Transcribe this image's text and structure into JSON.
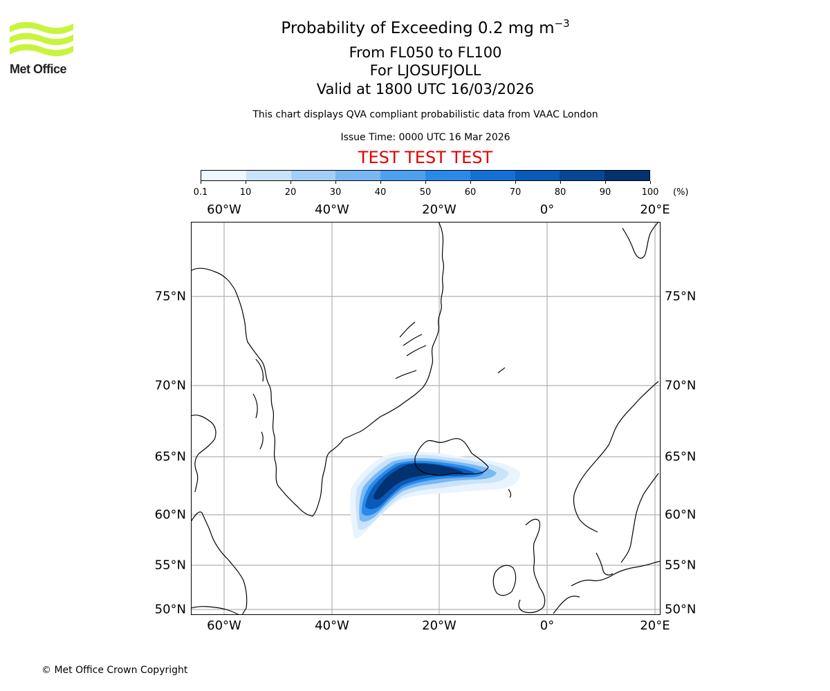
{
  "header": {
    "title": "Probability of Exceeding 0.2 mg m",
    "title_exponent": "−3",
    "level_range": "From FL050 to FL100",
    "volcano": "For LJOSUFJOLL",
    "valid_time": "Valid at 1800 UTC 16/03/2026",
    "disclaimer": "This chart displays QVA compliant probabilistic data from VAAC London",
    "issue_time": "Issue Time: 0000 UTC 16 Mar 2026",
    "test_banner": "TEST TEST TEST"
  },
  "logo": {
    "text": "Met Office",
    "color": "#c8f43c"
  },
  "colorbar": {
    "ticks": [
      "0.1",
      "10",
      "20",
      "30",
      "40",
      "50",
      "60",
      "70",
      "80",
      "90",
      "100"
    ],
    "unit": "(%)",
    "colors": [
      "#eef6fe",
      "#c9e3fa",
      "#a3cff6",
      "#79b8f2",
      "#4ea1ee",
      "#2a8aea",
      "#1570d6",
      "#0a5ab8",
      "#064796",
      "#033270"
    ]
  },
  "map": {
    "lon_labels": [
      "60°W",
      "40°W",
      "20°W",
      "0°",
      "20°E"
    ],
    "lat_labels": [
      "75°N",
      "70°N",
      "65°N",
      "60°N",
      "55°N",
      "50°N"
    ],
    "plume_region": "Iceland / North Atlantic"
  },
  "footer": {
    "copyright": "© Met Office Crown Copyright"
  }
}
